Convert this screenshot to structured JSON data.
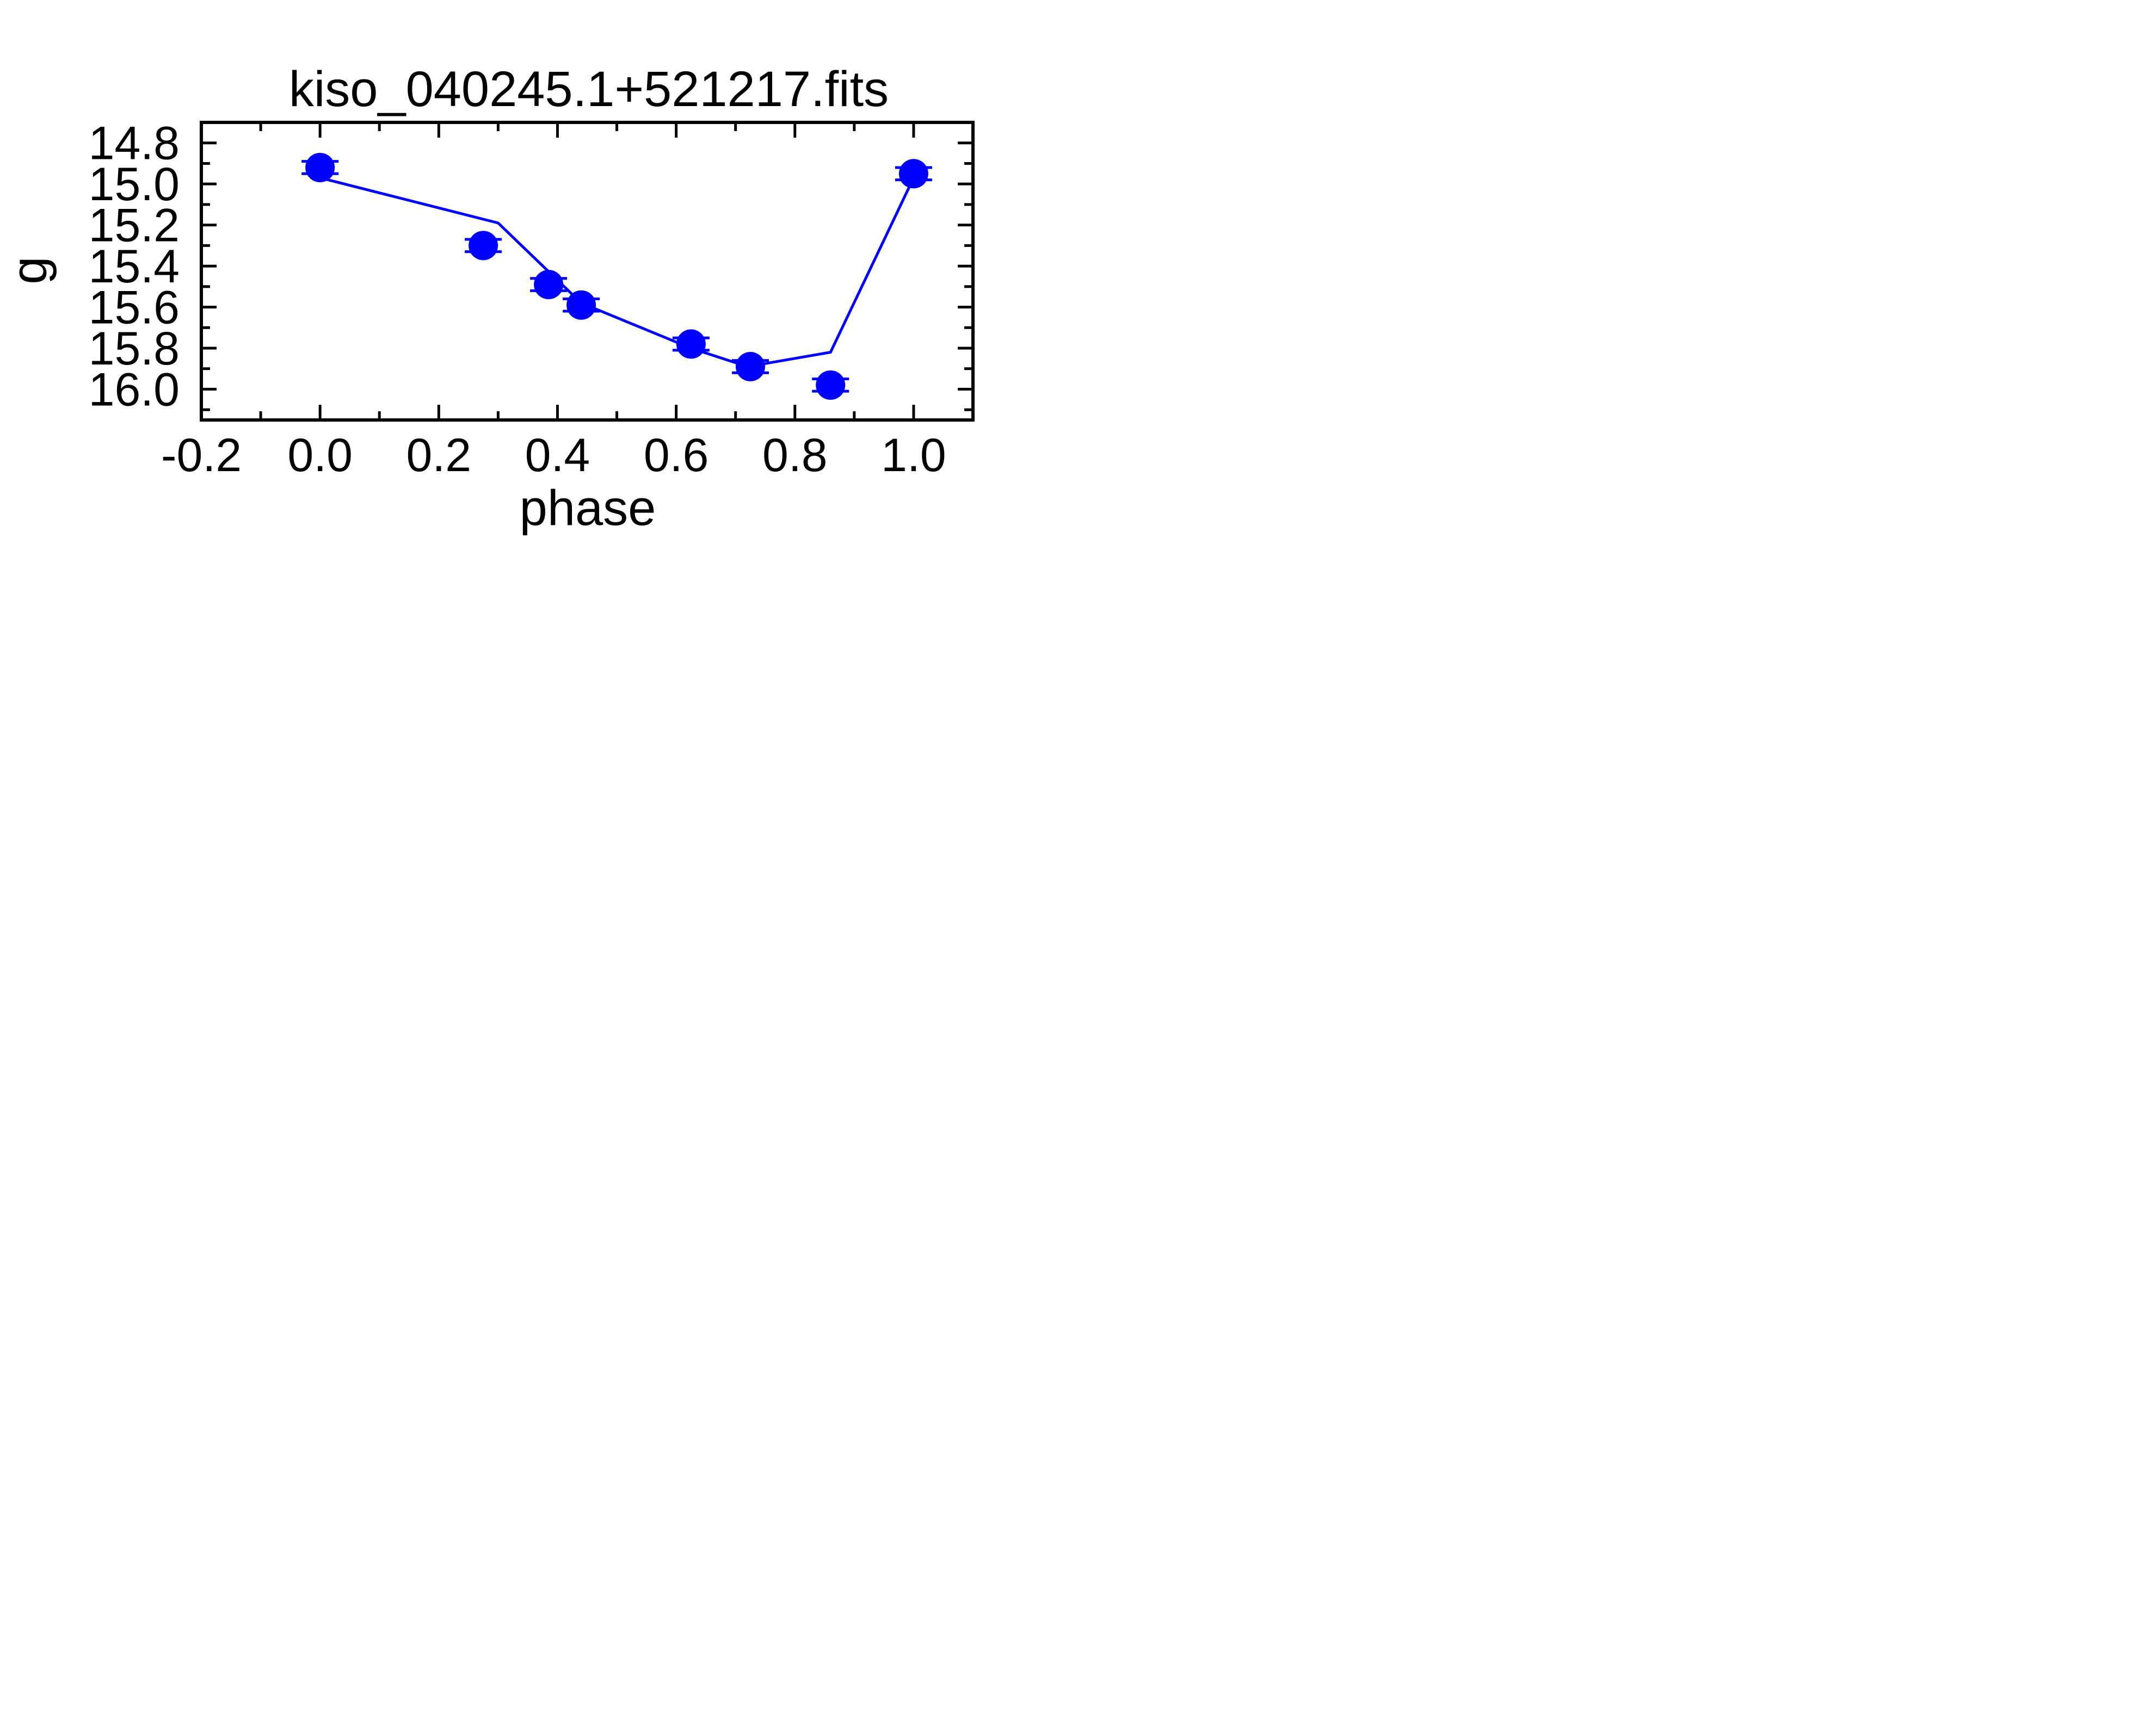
{
  "chart_data": {
    "type": "scatter",
    "title": "kiso_040245.1+521217.fits",
    "xlabel": "phase",
    "ylabel": "g",
    "xlim": [
      -0.2,
      1.1
    ],
    "ylim": [
      14.7,
      16.15
    ],
    "y_inverted": true,
    "grid": false,
    "x_ticks": [
      "-0.2",
      "0.0",
      "0.2",
      "0.4",
      "0.6",
      "0.8",
      "1.0"
    ],
    "y_ticks": [
      "14.8",
      "15.0",
      "15.2",
      "15.4",
      "15.6",
      "15.8",
      "16.0"
    ],
    "points": [
      {
        "x": 0.0,
        "y": 14.92,
        "err": 0.03
      },
      {
        "x": 0.275,
        "y": 15.3,
        "err": 0.03
      },
      {
        "x": 0.385,
        "y": 15.49,
        "err": 0.03
      },
      {
        "x": 0.44,
        "y": 15.59,
        "err": 0.03
      },
      {
        "x": 0.625,
        "y": 15.78,
        "err": 0.03
      },
      {
        "x": 0.725,
        "y": 15.89,
        "err": 0.03
      },
      {
        "x": 0.86,
        "y": 15.98,
        "err": 0.03
      },
      {
        "x": 1.0,
        "y": 14.95,
        "err": 0.03
      }
    ],
    "model_line": {
      "x": [
        0.0,
        0.3,
        0.44,
        0.625,
        0.72,
        0.86,
        1.0
      ],
      "y": [
        14.97,
        15.19,
        15.58,
        15.8,
        15.89,
        15.82,
        14.97
      ]
    },
    "colors": {
      "series": "#0000ff",
      "axes": "#000000"
    }
  }
}
